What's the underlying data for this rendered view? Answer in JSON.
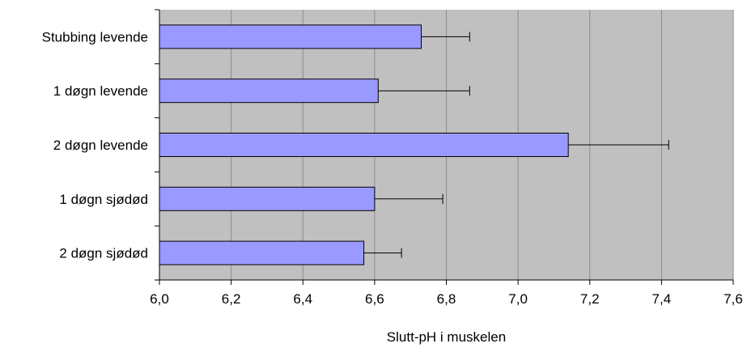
{
  "chart_data": {
    "type": "bar",
    "orientation": "horizontal",
    "categories": [
      "Stubbing levende",
      "1 døgn levende",
      "2 døgn levende",
      "1 døgn sjødød",
      "2 døgn sjødød"
    ],
    "values": [
      6.73,
      6.61,
      7.14,
      6.6,
      6.57
    ],
    "error": [
      0.135,
      0.255,
      0.28,
      0.19,
      0.105
    ],
    "xlabel": "Slutt-pH i muskelen",
    "ylabel": "",
    "xlim": [
      6.0,
      7.6
    ],
    "xticks": [
      "6,0",
      "6,2",
      "6,4",
      "6,6",
      "6,8",
      "7,0",
      "7,2",
      "7,4",
      "7,6"
    ],
    "grid": "vertical",
    "legend": "none",
    "colors": {
      "bar": "#9999ff",
      "plot_background": "#c0c0c0",
      "gridline": "#8c8c8c"
    }
  }
}
